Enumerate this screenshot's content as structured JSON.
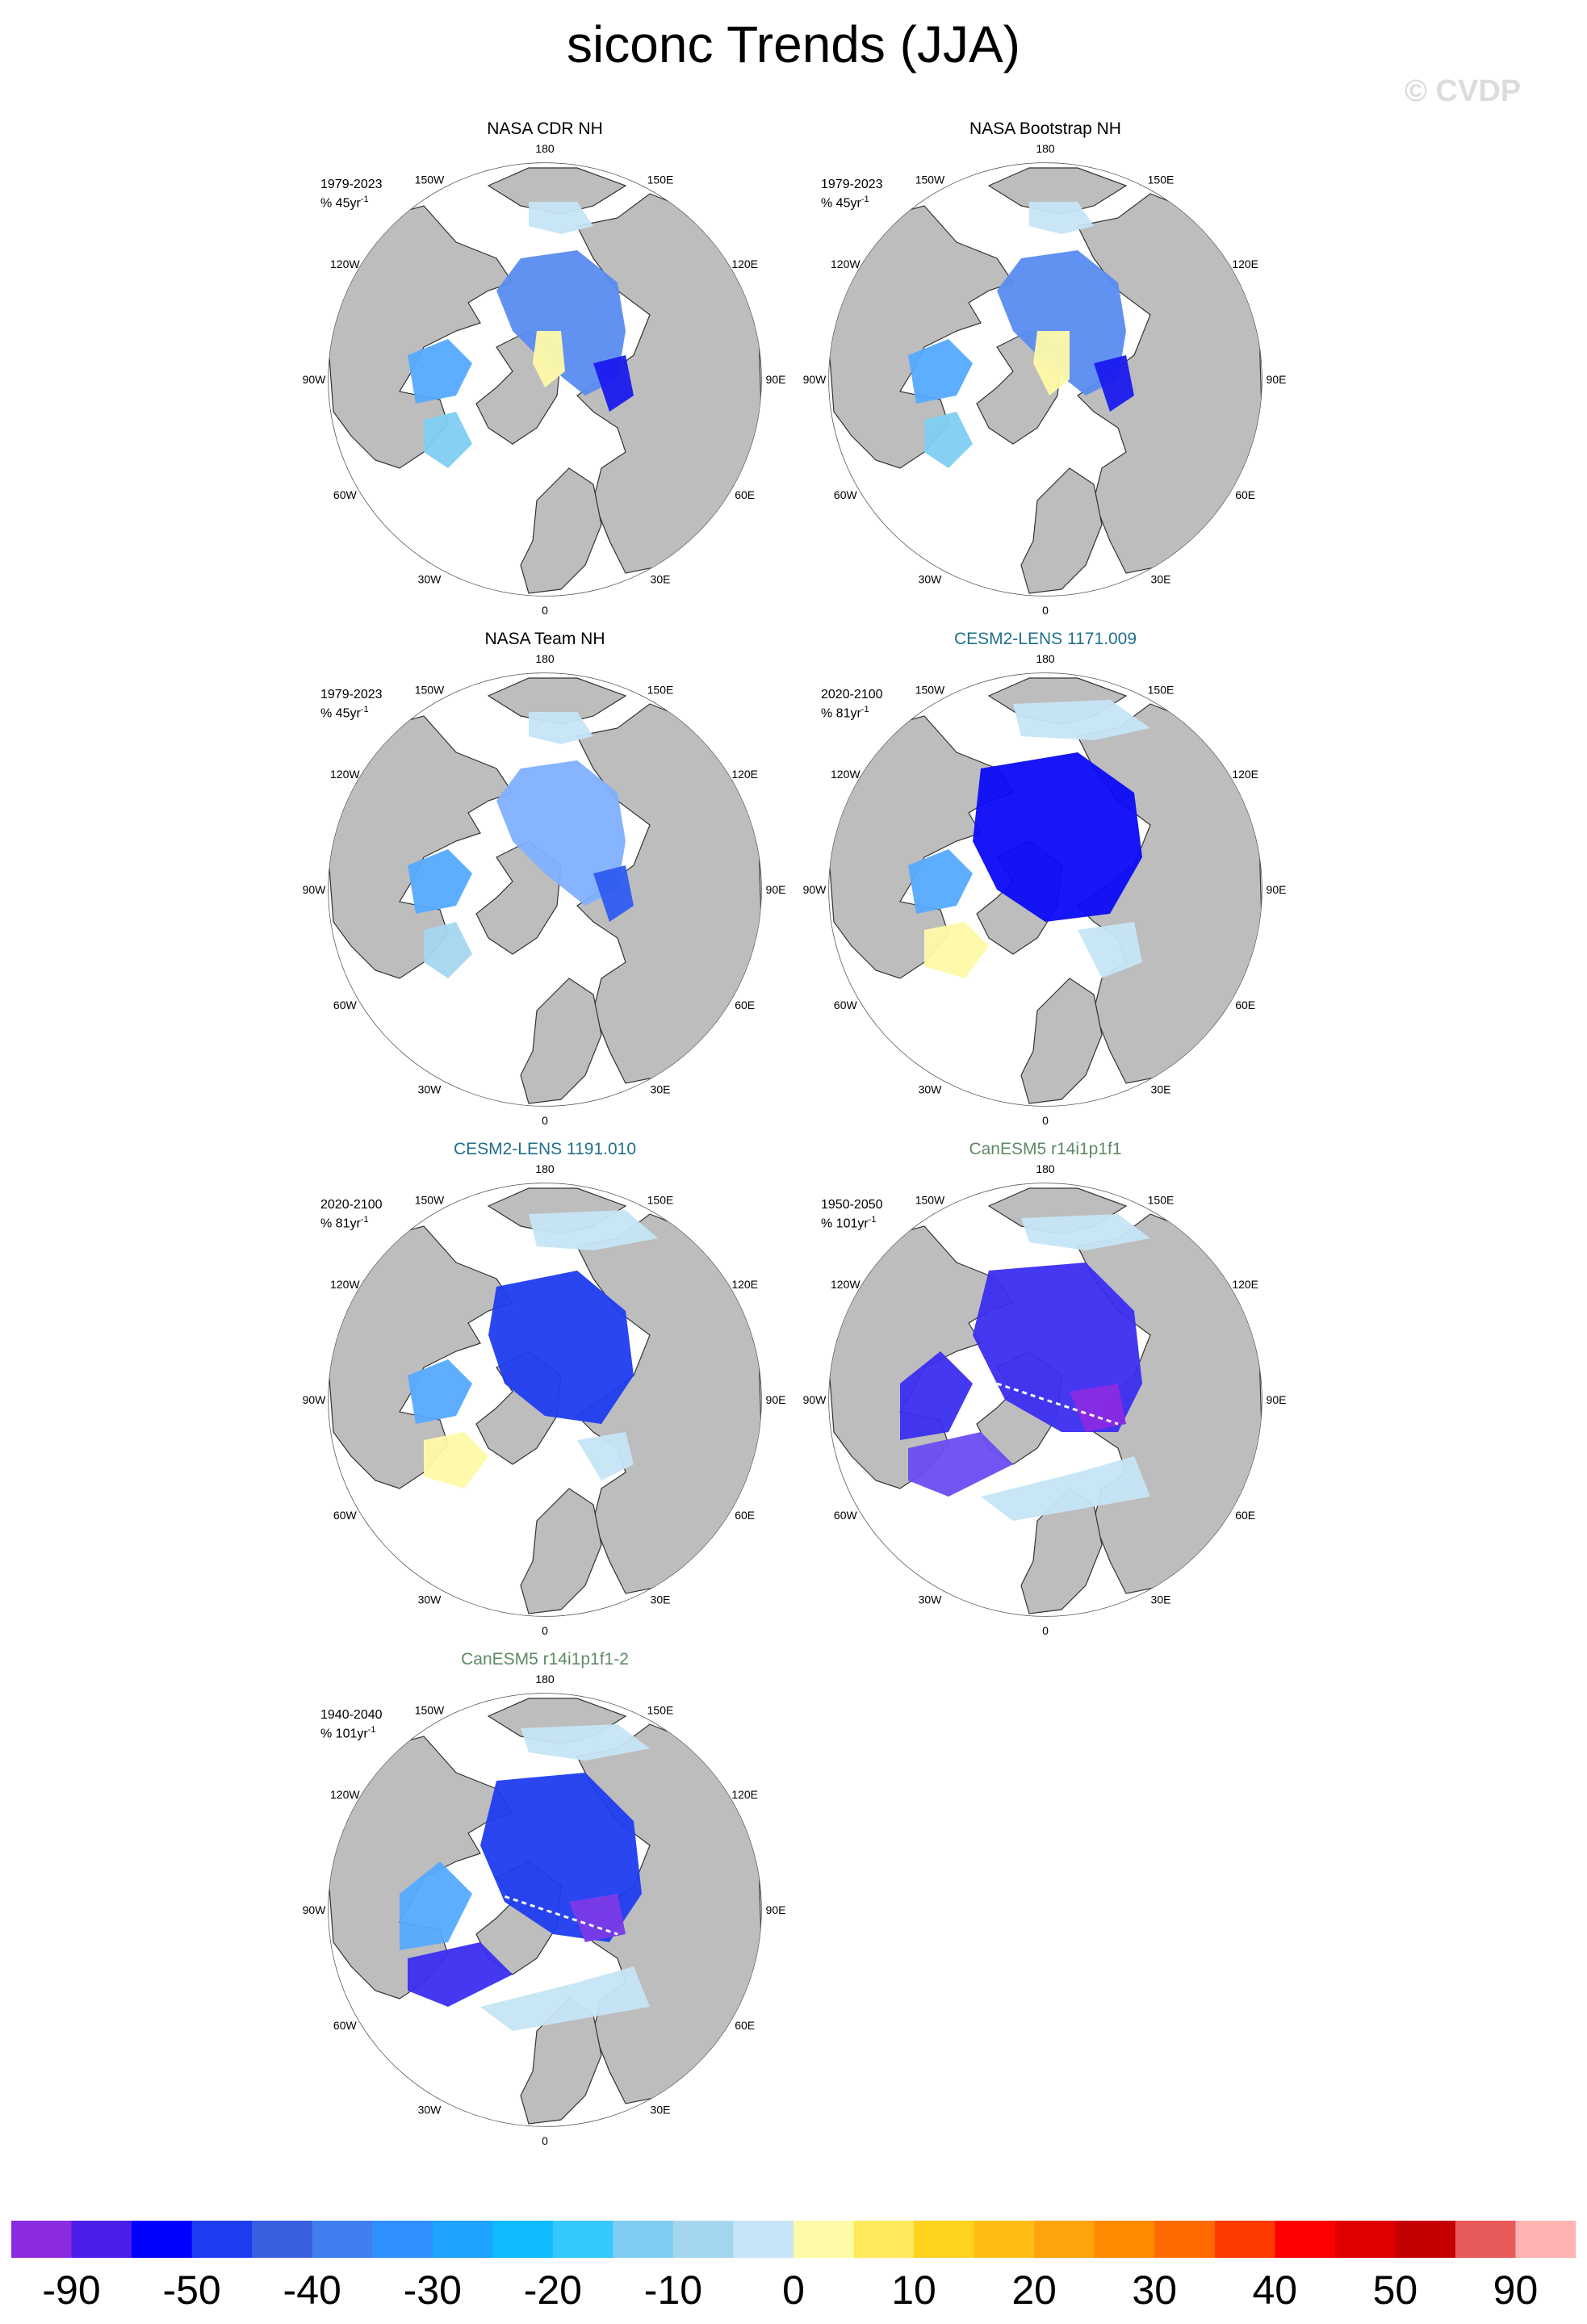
{
  "title": "siconc Trends (JJA)",
  "watermark": "© CVDP",
  "lon_labels": [
    "180",
    "150E",
    "120E",
    "90E",
    "60E",
    "30E",
    "0",
    "30W",
    "60W",
    "90W",
    "120W",
    "150W"
  ],
  "panels": [
    {
      "title": "NASA CDR NH",
      "title_color": "#000000",
      "period": "1979-2023",
      "units": "% 45yr",
      "exp": "-1",
      "style": "obs1"
    },
    {
      "title": "NASA Bootstrap NH",
      "title_color": "#000000",
      "period": "1979-2023",
      "units": "% 45yr",
      "exp": "-1",
      "style": "obs2"
    },
    {
      "title": "NASA Team NH",
      "title_color": "#000000",
      "period": "1979-2023",
      "units": "% 45yr",
      "exp": "-1",
      "style": "obs3"
    },
    {
      "title": "CESM2-LENS 1171.009",
      "title_color": "#1f6f8b",
      "period": "2020-2100",
      "units": "% 81yr",
      "exp": "-1",
      "style": "cesm1"
    },
    {
      "title": "CESM2-LENS 1191.010",
      "title_color": "#1f6f8b",
      "period": "2020-2100",
      "units": "% 81yr",
      "exp": "-1",
      "style": "cesm2"
    },
    {
      "title": "CanESM5 r14i1p1f1",
      "title_color": "#5f8a63",
      "period": "1950-2050",
      "units": "% 101yr",
      "exp": "-1",
      "style": "can1"
    },
    {
      "title": "CanESM5 r14i1p1f1-2",
      "title_color": "#5f8a63",
      "period": "1940-2040",
      "units": "% 101yr",
      "exp": "-1",
      "style": "can2"
    }
  ],
  "colorbar": {
    "colors": [
      "#8a2be2",
      "#4b1de8",
      "#0000ff",
      "#1e3cf0",
      "#3a5ee0",
      "#3f7ff0",
      "#2f90ff",
      "#1ea3ff",
      "#0fbaff",
      "#35c8ff",
      "#7fcdf3",
      "#a5d6f0",
      "#c6e5f6",
      "#fffaa6",
      "#ffe95a",
      "#ffd21e",
      "#ffbd14",
      "#ffa30a",
      "#ff8a00",
      "#ff6a00",
      "#ff3a00",
      "#ff0000",
      "#e00000",
      "#c40000",
      "#e85a5a",
      "#ffb3b3"
    ],
    "labels": [
      "-90",
      "-50",
      "-40",
      "-30",
      "-20",
      "-10",
      "0",
      "10",
      "20",
      "30",
      "40",
      "50",
      "90"
    ]
  }
}
